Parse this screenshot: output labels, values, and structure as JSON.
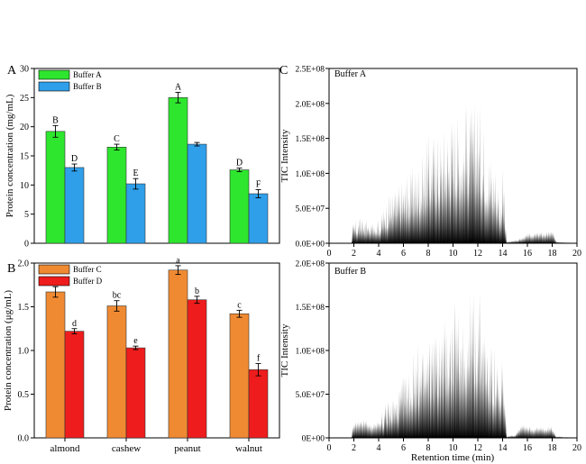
{
  "chart_data": [
    {
      "panel": "A",
      "type": "bar",
      "ylabel": "Protein concentration (mg/mL)",
      "xlabel": "",
      "ylim": [
        0,
        30
      ],
      "yticks": [
        "0",
        "5",
        "10",
        "15",
        "20",
        "25",
        "30"
      ],
      "categories": [
        "almond",
        "cashew",
        "peanut",
        "walnut"
      ],
      "series": [
        {
          "name": "Buffer A",
          "color": "#2ee62e",
          "values": [
            19.2,
            16.5,
            25.0,
            12.6
          ],
          "errors": [
            1.0,
            0.5,
            0.9,
            0.3
          ],
          "labels": [
            "B",
            "C",
            "A",
            "D"
          ]
        },
        {
          "name": "Buffer B",
          "color": "#2f9fea",
          "values": [
            13.0,
            10.2,
            17.0,
            8.5
          ],
          "errors": [
            0.6,
            0.9,
            0.3,
            0.7
          ],
          "labels": [
            "D",
            "E",
            "",
            "F"
          ]
        }
      ],
      "legend": "top-left",
      "grid": false
    },
    {
      "panel": "B",
      "type": "bar",
      "ylabel": "Protein concentration (μg/mL)",
      "xlabel": "",
      "ylim": [
        0,
        2.0
      ],
      "yticks": [
        "0.0",
        "0.5",
        "1.0",
        "1.5",
        "2.0"
      ],
      "categories": [
        "almond",
        "cashew",
        "peanut",
        "walnut"
      ],
      "series": [
        {
          "name": "Buffer C",
          "color": "#f08a32",
          "values": [
            1.67,
            1.51,
            1.92,
            1.42
          ],
          "errors": [
            0.06,
            0.06,
            0.05,
            0.04
          ],
          "labels": [
            "b",
            "bc",
            "a",
            "c"
          ]
        },
        {
          "name": "Buffer D",
          "color": "#ee1c1c",
          "values": [
            1.22,
            1.03,
            1.58,
            0.78
          ],
          "errors": [
            0.03,
            0.02,
            0.04,
            0.07
          ],
          "labels": [
            "d",
            "e",
            "b",
            "f"
          ]
        }
      ],
      "legend": "top-left",
      "grid": false
    },
    {
      "panel": "C",
      "type": "area",
      "title": "Buffer A",
      "ylabel": "TIC Intensity",
      "xlabel": "",
      "xlim": [
        0,
        20
      ],
      "ylim": [
        0,
        250000000
      ],
      "xticks": [
        "0",
        "2",
        "4",
        "6",
        "8",
        "10",
        "12",
        "14",
        "16",
        "18",
        "20"
      ],
      "yticks": [
        "0.0E+00",
        "5.0E+07",
        "1.0E+08",
        "1.5E+08",
        "2.0E+08",
        "2.5E+08"
      ],
      "envelope_x": [
        0,
        1.8,
        1.9,
        2.5,
        3.0,
        3.3,
        3.6,
        4.0,
        4.6,
        5.0,
        5.5,
        6.0,
        6.5,
        7.0,
        7.5,
        8.0,
        8.5,
        9.0,
        9.5,
        10.0,
        10.5,
        11.0,
        11.5,
        12.0,
        12.5,
        13.0,
        13.5,
        13.8,
        14.0,
        14.3,
        15.0,
        15.5,
        16.0,
        16.5,
        17.0,
        17.5,
        18.0,
        18.3,
        20
      ],
      "envelope_y": [
        0,
        0,
        30000000,
        40000000,
        35000000,
        20000000,
        45000000,
        35000000,
        65000000,
        80000000,
        85000000,
        100000000,
        105000000,
        120000000,
        130000000,
        160000000,
        170000000,
        165000000,
        190000000,
        200000000,
        195000000,
        210000000,
        205000000,
        215000000,
        180000000,
        140000000,
        120000000,
        70000000,
        120000000,
        2000000,
        5000000,
        8000000,
        14000000,
        15000000,
        17000000,
        16000000,
        20000000,
        3000000,
        0
      ]
    },
    {
      "panel": "",
      "type": "area",
      "title": "Buffer B",
      "ylabel": "TIC Intensity",
      "xlabel": "Retention time (min)",
      "xlim": [
        0,
        20
      ],
      "ylim": [
        0,
        200000000
      ],
      "xticks": [
        "0",
        "2",
        "4",
        "6",
        "8",
        "10",
        "12",
        "14",
        "16",
        "18",
        "20"
      ],
      "yticks": [
        "0E+00",
        "5.0E+07",
        "1.0E+08",
        "1.5E+08",
        "2.0E+08"
      ],
      "envelope_x": [
        0,
        1.8,
        1.9,
        2.5,
        3.0,
        3.3,
        3.6,
        4.0,
        4.6,
        5.0,
        5.5,
        6.0,
        6.5,
        7.0,
        7.5,
        8.0,
        8.5,
        9.0,
        9.5,
        10.0,
        10.5,
        11.0,
        11.5,
        12.0,
        12.5,
        13.0,
        13.5,
        13.8,
        14.0,
        14.3,
        15.0,
        15.5,
        16.0,
        16.5,
        17.0,
        17.5,
        18.0,
        18.3,
        20
      ],
      "envelope_y": [
        0,
        0,
        18000000,
        20000000,
        22000000,
        15000000,
        18000000,
        20000000,
        42000000,
        50000000,
        55000000,
        75000000,
        90000000,
        110000000,
        105000000,
        120000000,
        135000000,
        130000000,
        150000000,
        160000000,
        155000000,
        165000000,
        170000000,
        180000000,
        150000000,
        110000000,
        100000000,
        60000000,
        120000000,
        2000000,
        4000000,
        18000000,
        15000000,
        12000000,
        13000000,
        12000000,
        14000000,
        2000000,
        0
      ]
    }
  ],
  "shared_categories_axis": {
    "labels": [
      "almond",
      "cashew",
      "peanut",
      "walnut"
    ]
  }
}
